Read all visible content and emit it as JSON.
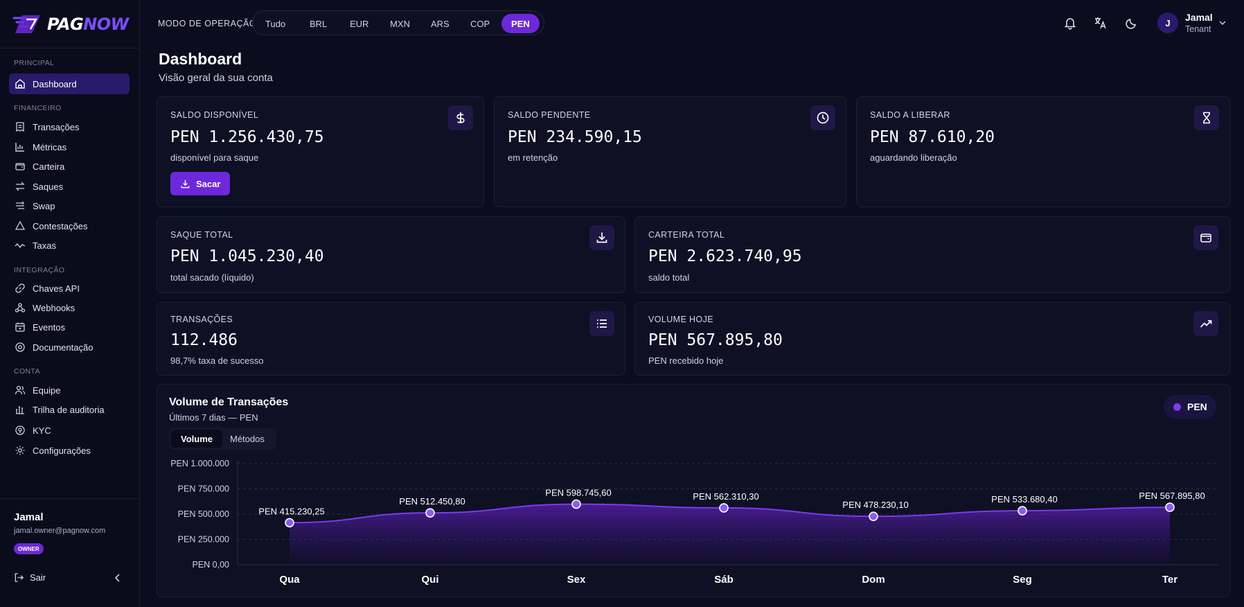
{
  "brand": {
    "logo_part1": "PAG",
    "logo_part2": "NOW",
    "accent": "#6d28d9"
  },
  "sidebar": {
    "sections": [
      {
        "title": "PRINCIPAL",
        "items": [
          {
            "label": "Dashboard",
            "icon": "home-icon",
            "active": true
          }
        ]
      },
      {
        "title": "FINANCEIRO",
        "items": [
          {
            "label": "Transações",
            "icon": "receipt-icon"
          },
          {
            "label": "Métricas",
            "icon": "bar-chart-icon"
          },
          {
            "label": "Carteira",
            "icon": "wallet-icon"
          },
          {
            "label": "Saques",
            "icon": "arrows-swap-icon"
          },
          {
            "label": "Swap",
            "icon": "swap-icon"
          },
          {
            "label": "Contestações",
            "icon": "alert-triangle-icon"
          },
          {
            "label": "Taxas",
            "icon": "trend-icon"
          }
        ]
      },
      {
        "title": "INTEGRAÇÃO",
        "items": [
          {
            "label": "Chaves API",
            "icon": "link-icon"
          },
          {
            "label": "Webhooks",
            "icon": "webhook-icon"
          },
          {
            "label": "Eventos",
            "icon": "calendar-icon"
          },
          {
            "label": "Documentação",
            "icon": "book-icon"
          }
        ]
      },
      {
        "title": "CONTA",
        "items": [
          {
            "label": "Equipe",
            "icon": "users-icon"
          },
          {
            "label": "Trilha de auditoria",
            "icon": "audit-icon"
          },
          {
            "label": "KYC",
            "icon": "badge-icon"
          },
          {
            "label": "Configurações",
            "icon": "gear-icon"
          }
        ]
      }
    ],
    "user": {
      "name": "Jamal",
      "email": "jamal.owner@pagnow.com",
      "role": "OWNER"
    },
    "logout_label": "Sair"
  },
  "header": {
    "mode_label": "MODO DE OPERAÇÃO",
    "currencies": [
      "Tudo",
      "BRL",
      "EUR",
      "MXN",
      "ARS",
      "COP",
      "PEN"
    ],
    "selected_currency": "PEN",
    "user": {
      "initial": "J",
      "name": "Jamal",
      "role": "Tenant"
    }
  },
  "page": {
    "title": "Dashboard",
    "subtitle": "Visão geral da sua conta"
  },
  "cards": {
    "saldo_disponivel": {
      "label": "SALDO DISPONÍVEL",
      "value": "PEN 1.256.430,75",
      "sub": "disponível para saque",
      "button": "Sacar"
    },
    "saldo_pendente": {
      "label": "SALDO PENDENTE",
      "value": "PEN 234.590,15",
      "sub": "em retenção"
    },
    "saldo_liberar": {
      "label": "SALDO A LIBERAR",
      "value": "PEN 87.610,20",
      "sub": "aguardando liberação"
    },
    "saque_total": {
      "label": "SAQUE TOTAL",
      "value": "PEN 1.045.230,40",
      "sub": "total sacado (líquido)"
    },
    "carteira_total": {
      "label": "CARTEIRA TOTAL",
      "value": "PEN 2.623.740,95",
      "sub": "saldo total"
    },
    "transacoes": {
      "label": "TRANSAÇÕES",
      "value": "112.486",
      "sub": "98,7% taxa de sucesso"
    },
    "volume_hoje": {
      "label": "VOLUME HOJE",
      "value": "PEN 567.895,80",
      "sub": "PEN recebido hoje"
    }
  },
  "chart_panel": {
    "title": "Volume de Transações",
    "subtitle": "Últimos 7 dias — PEN",
    "tabs": [
      "Volume",
      "Métodos"
    ],
    "active_tab": "Volume",
    "legend": "PEN"
  },
  "chart_data": {
    "type": "area",
    "categories": [
      "Qua",
      "Qui",
      "Sex",
      "Sáb",
      "Dom",
      "Seg",
      "Ter"
    ],
    "series": [
      {
        "name": "PEN",
        "values": [
          415230.25,
          512450.8,
          598745.6,
          562310.3,
          478230.1,
          533680.4,
          567895.8
        ],
        "labels": [
          "PEN 415.230,25",
          "PEN 512.450,80",
          "PEN 598.745,60",
          "PEN 562.310,30",
          "PEN 478.230,10",
          "PEN 533.680,40",
          "PEN 567.895,80"
        ]
      }
    ],
    "ylim": [
      0,
      1000000
    ],
    "yticks": [
      0,
      250000,
      500000,
      750000,
      1000000
    ],
    "ytick_labels": [
      "PEN 0,00",
      "PEN 250.000",
      "PEN 500.000",
      "PEN 750.000",
      "PEN 1.000.000"
    ],
    "grid": true,
    "color": "#7c3aed"
  }
}
